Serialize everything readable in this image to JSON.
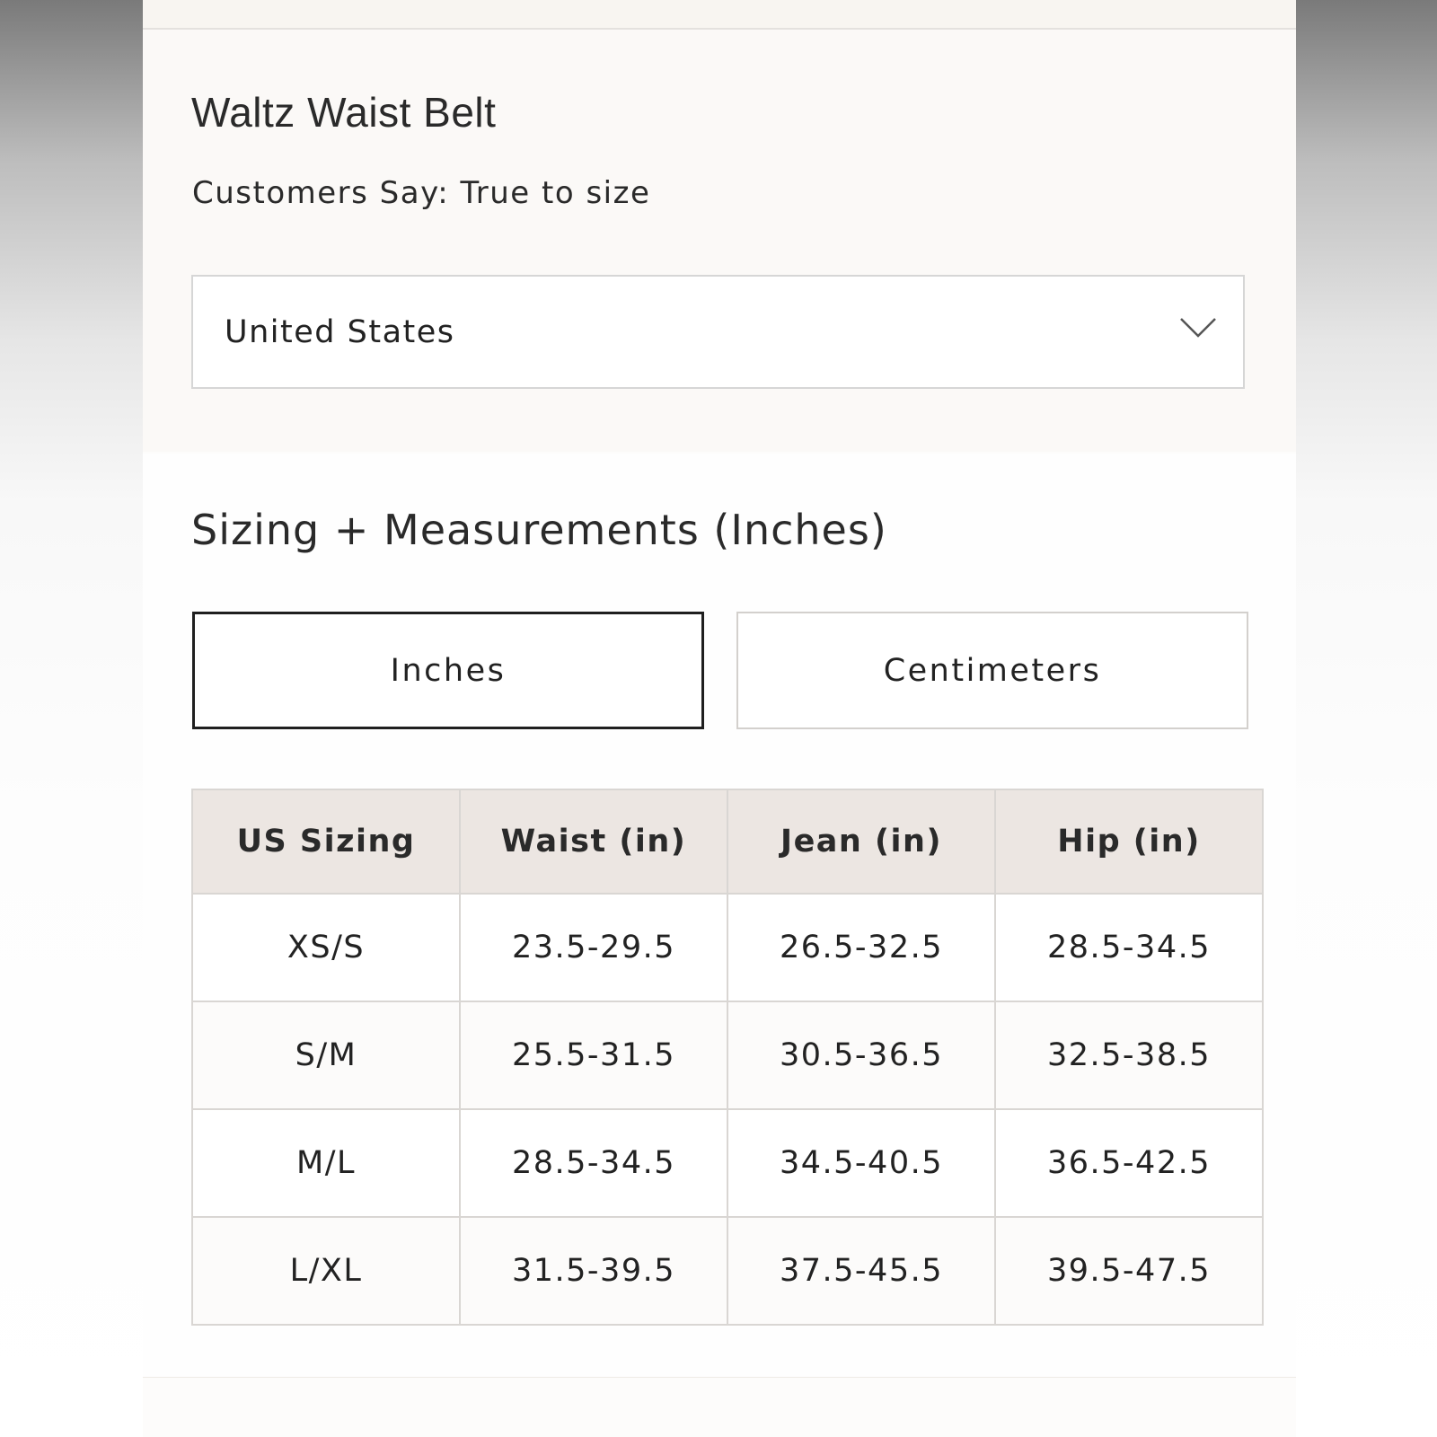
{
  "product": {
    "title": "Waltz Waist Belt",
    "fit_note": "Customers Say: True to size"
  },
  "region_select": {
    "value": "United States",
    "icon": "chevron-down-icon"
  },
  "sizing": {
    "heading": "Sizing + Measurements (Inches)",
    "units": [
      {
        "label": "Inches",
        "active": true
      },
      {
        "label": "Centimeters",
        "active": false
      }
    ],
    "table": {
      "headers": [
        "US Sizing",
        "Waist (in)",
        "Jean (in)",
        "Hip (in)"
      ],
      "rows": [
        [
          "XS/S",
          "23.5-29.5",
          "26.5-32.5",
          "28.5-34.5"
        ],
        [
          "S/M",
          "25.5-31.5",
          "30.5-36.5",
          "32.5-38.5"
        ],
        [
          "M/L",
          "28.5-34.5",
          "34.5-40.5",
          "36.5-42.5"
        ],
        [
          "L/XL",
          "31.5-39.5",
          "37.5-45.5",
          "39.5-47.5"
        ]
      ]
    }
  },
  "colors": {
    "header_bg": "#ece6e2",
    "active_border": "#1f1f1f",
    "panel_bg": "#fbf9f7"
  }
}
